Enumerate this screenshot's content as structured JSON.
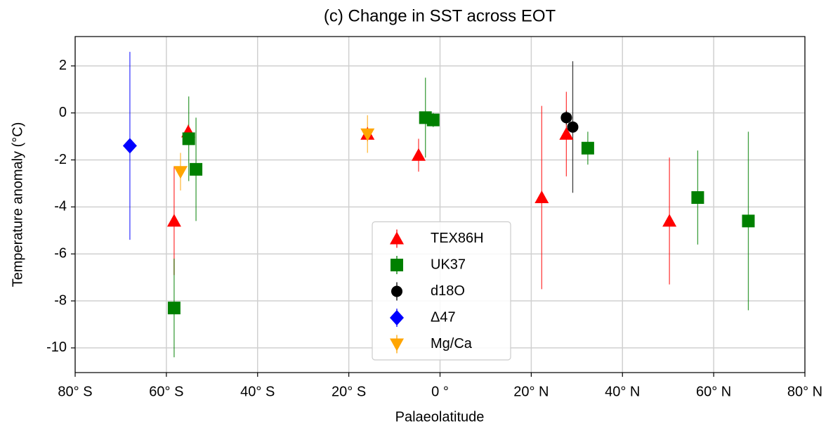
{
  "chart_data": {
    "type": "scatter",
    "title": "(c) Change in SST across EOT",
    "xlabel": "Palaeolatitude",
    "ylabel": "Temperature anomaly (°C)",
    "xlim": [
      -80,
      80
    ],
    "ylim": [
      -11.05,
      3.25
    ],
    "xticks": [
      {
        "value": -80,
        "label": "80° S"
      },
      {
        "value": -60,
        "label": "60° S"
      },
      {
        "value": -40,
        "label": "40° S"
      },
      {
        "value": -20,
        "label": "20° S"
      },
      {
        "value": 0,
        "label": "0 °"
      },
      {
        "value": 20,
        "label": "20° N"
      },
      {
        "value": 40,
        "label": "40° N"
      },
      {
        "value": 60,
        "label": "60° N"
      },
      {
        "value": 80,
        "label": "80° N"
      }
    ],
    "yticks": [
      -10,
      -8,
      -6,
      -4,
      -2,
      0,
      2
    ],
    "grid": true,
    "legend": "lower center",
    "series": [
      {
        "name": "TEX86H",
        "color": "#ff0000",
        "marker": "triangle-up",
        "x": [
          -58.3,
          -55.2,
          -15.9,
          -4.7,
          22.3,
          27.7,
          50.3
        ],
        "values": [
          -4.6,
          -0.8,
          -0.9,
          -1.8,
          -3.6,
          -0.9,
          -4.6
        ],
        "errors": [
          2.3,
          0.3,
          0.3,
          0.7,
          3.9,
          1.8,
          2.7
        ]
      },
      {
        "name": "UK37",
        "color": "#008000",
        "marker": "square",
        "x": [
          -58.3,
          -55.1,
          -53.5,
          -3.2,
          -1.5,
          32.4,
          56.5,
          67.6
        ],
        "values": [
          -8.3,
          -1.1,
          -2.4,
          -0.2,
          -0.3,
          -1.5,
          -3.6,
          -4.6
        ],
        "errors": [
          2.1,
          1.8,
          2.2,
          1.7,
          0.3,
          0.7,
          2.0,
          3.8
        ]
      },
      {
        "name": "d18O",
        "color": "#000000",
        "marker": "circle",
        "x": [
          27.7,
          29.1
        ],
        "values": [
          -0.2,
          -0.6
        ],
        "errors": [
          0.3,
          2.8
        ]
      },
      {
        "name": "Δ47",
        "color": "#0000ff",
        "marker": "diamond",
        "x": [
          -68.0
        ],
        "values": [
          -1.4
        ],
        "errors": [
          4.0
        ]
      },
      {
        "name": "Mg/Ca",
        "color": "#ffa500",
        "marker": "triangle-down",
        "x": [
          -56.9,
          -15.9
        ],
        "values": [
          -2.5,
          -0.9
        ],
        "errors": [
          0.8,
          0.8
        ]
      }
    ]
  }
}
